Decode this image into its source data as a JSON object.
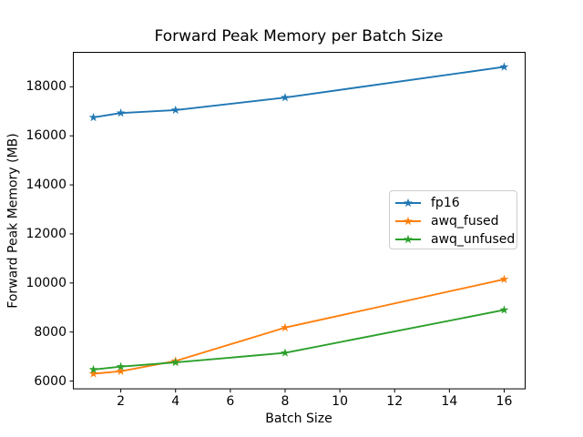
{
  "window": {
    "background": "#ffffff",
    "axis_color": "#000000",
    "legend_border_color": "#cccccc"
  },
  "chart_data": {
    "type": "line",
    "title": "Forward Peak Memory per Batch Size",
    "xlabel": "Batch Size",
    "ylabel": "Forward Peak Memory (MB)",
    "x": [
      1,
      2,
      4,
      8,
      16
    ],
    "series": [
      {
        "name": "fp16",
        "color": "#1f77b4",
        "marker": "star",
        "values": [
          16750,
          16930,
          17050,
          17560,
          18810
        ]
      },
      {
        "name": "awq_fused",
        "color": "#ff7f0e",
        "marker": "star",
        "values": [
          6300,
          6400,
          6820,
          8180,
          10150
        ]
      },
      {
        "name": "awq_unfused",
        "color": "#2ca02c",
        "marker": "star",
        "values": [
          6470,
          6590,
          6760,
          7150,
          8900
        ]
      }
    ],
    "xticks": [
      2,
      4,
      6,
      8,
      10,
      12,
      14,
      16
    ],
    "yticks": [
      6000,
      8000,
      10000,
      12000,
      14000,
      16000,
      18000
    ],
    "xlim": [
      0.25,
      16.75
    ],
    "ylim": [
      5680,
      19400
    ],
    "grid": false,
    "legend_position": "center right",
    "legend_entries": [
      "fp16",
      "awq_fused",
      "awq_unfused"
    ]
  }
}
